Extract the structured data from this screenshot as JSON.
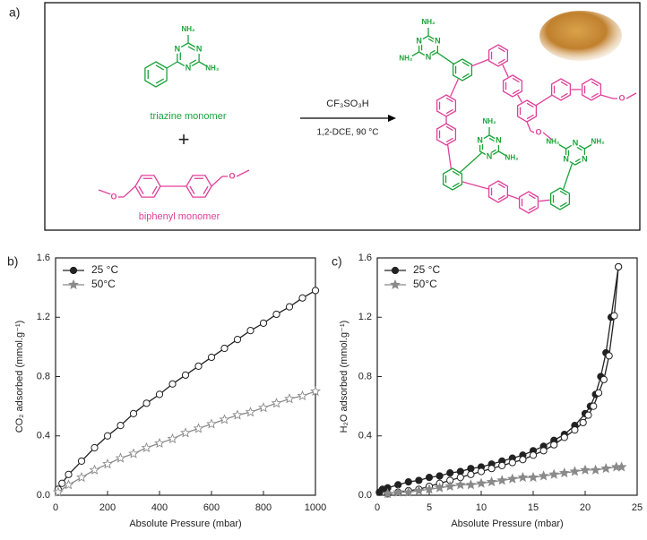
{
  "scheme": {
    "panel_label": "a)",
    "monomer1": "triazine monomer",
    "plus": "+",
    "monomer2": "biphenyl monomer",
    "reagent": "CF₃SO₃H",
    "conditions": "1,2-DCE, 90 °C",
    "nh2": "NH₂",
    "n": "N",
    "o": "O"
  },
  "chart_data": [
    {
      "type": "line",
      "panel_label": "b)",
      "x_label": "Absolute Pressure (mbar)",
      "y_label": "CO₂ adsorbed (mmol.g⁻¹)",
      "xlim": [
        0,
        1000
      ],
      "xticks": [
        0,
        200,
        400,
        600,
        800,
        1000
      ],
      "ylim": [
        0,
        1.6
      ],
      "yticks": [
        {
          "value": 0,
          "label": "0.0"
        },
        0.4,
        0.8,
        1.2,
        1.6
      ],
      "legend": "top-left",
      "series": [
        {
          "name": "25 °C",
          "color": "#222222",
          "marker": "circle",
          "marker_fill": "#ffffff",
          "legend_fill": "#222222",
          "x": [
            10,
            25,
            50,
            100,
            150,
            200,
            250,
            300,
            350,
            400,
            450,
            500,
            550,
            600,
            650,
            700,
            750,
            800,
            850,
            900,
            950,
            1000
          ],
          "values": [
            0.04,
            0.08,
            0.14,
            0.23,
            0.32,
            0.4,
            0.47,
            0.55,
            0.62,
            0.68,
            0.75,
            0.81,
            0.87,
            0.93,
            0.99,
            1.05,
            1.11,
            1.16,
            1.22,
            1.27,
            1.33,
            1.38
          ]
        },
        {
          "name": "50°C",
          "color": "#8a8a8a",
          "marker": "star",
          "marker_fill": "#ffffff",
          "legend_fill": "#8a8a8a",
          "x": [
            10,
            50,
            100,
            150,
            200,
            250,
            300,
            350,
            400,
            450,
            500,
            550,
            600,
            650,
            700,
            750,
            800,
            850,
            900,
            950,
            1000
          ],
          "values": [
            0.02,
            0.07,
            0.12,
            0.17,
            0.21,
            0.25,
            0.28,
            0.32,
            0.35,
            0.38,
            0.42,
            0.45,
            0.48,
            0.51,
            0.54,
            0.56,
            0.59,
            0.62,
            0.65,
            0.67,
            0.7
          ]
        }
      ]
    },
    {
      "type": "line",
      "panel_label": "c)",
      "x_label": "Absolute Pressure (mbar)",
      "y_label": "H₂O adsorbed (mmol.g⁻¹)",
      "xlim": [
        0,
        25
      ],
      "xticks": [
        0,
        5,
        10,
        15,
        20,
        25
      ],
      "ylim": [
        0,
        1.6
      ],
      "yticks": [
        {
          "value": 0,
          "label": "0.0"
        },
        0.4,
        0.8,
        1.2,
        1.6
      ],
      "legend": "top-left",
      "series": [
        {
          "name": "25 °C",
          "color": "#222222",
          "marker": "circle",
          "marker_fill": "#222222",
          "legend_fill": "#222222",
          "x": [
            0.2,
            0.5,
            1,
            2,
            3,
            4,
            5,
            6,
            7,
            8,
            9,
            10,
            11,
            12,
            13,
            14,
            15,
            16,
            17,
            18,
            19,
            20,
            20.5,
            21,
            21.5,
            22,
            22.5,
            23.2
          ],
          "values": [
            0.02,
            0.04,
            0.05,
            0.07,
            0.09,
            0.1,
            0.12,
            0.13,
            0.15,
            0.16,
            0.18,
            0.19,
            0.21,
            0.23,
            0.25,
            0.27,
            0.3,
            0.33,
            0.37,
            0.41,
            0.47,
            0.55,
            0.6,
            0.68,
            0.8,
            0.96,
            1.2,
            1.54
          ]
        },
        {
          "color": "#222222",
          "marker": "circle",
          "marker_fill": "#ffffff",
          "x": [
            23.2,
            22.8,
            22.3,
            21.8,
            21.3,
            20.8,
            20.3,
            19.8,
            19,
            18,
            17,
            16,
            15,
            14,
            13,
            12,
            11,
            10,
            9,
            8,
            7,
            6,
            5,
            4,
            3,
            2,
            1
          ],
          "values": [
            1.54,
            1.21,
            0.94,
            0.78,
            0.69,
            0.6,
            0.54,
            0.49,
            0.44,
            0.39,
            0.34,
            0.3,
            0.27,
            0.24,
            0.22,
            0.2,
            0.18,
            0.16,
            0.14,
            0.12,
            0.1,
            0.08,
            0.06,
            0.04,
            0.03,
            0.02,
            0.01
          ]
        },
        {
          "name": "50°C",
          "color": "#8a8a8a",
          "marker": "star",
          "marker_fill": "#8a8a8a",
          "legend_fill": "#8a8a8a",
          "x": [
            1,
            2,
            3,
            4,
            5,
            6,
            7,
            8,
            9,
            10,
            11,
            12,
            13,
            14,
            15,
            16,
            17,
            18,
            19,
            20,
            21,
            22,
            23,
            23.5
          ],
          "values": [
            0.01,
            0.02,
            0.02,
            0.03,
            0.04,
            0.05,
            0.06,
            0.07,
            0.07,
            0.08,
            0.09,
            0.1,
            0.11,
            0.12,
            0.12,
            0.13,
            0.14,
            0.15,
            0.16,
            0.17,
            0.17,
            0.18,
            0.19,
            0.19
          ]
        }
      ]
    }
  ]
}
